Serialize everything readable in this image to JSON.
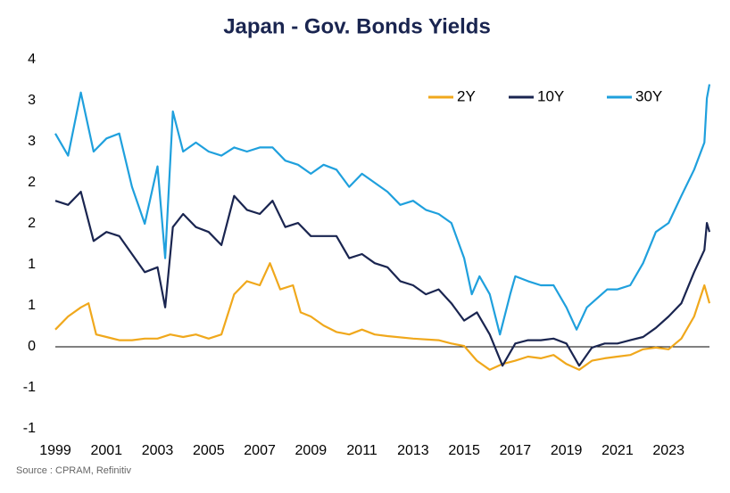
{
  "chart_data": {
    "type": "line",
    "title": "Japan - Gov. Bonds Yields",
    "source": "Source : CPRAM, Refinitiv",
    "xlim": [
      1999,
      2024.6
    ],
    "xticks": [
      1999,
      2001,
      2003,
      2005,
      2007,
      2009,
      2011,
      2013,
      2015,
      2017,
      2019,
      2021,
      2023
    ],
    "ylim": [
      -1,
      3.5
    ],
    "yticks": [
      -1,
      {
        "value": -0.5,
        "label": "-1"
      },
      0,
      {
        "value": 0.5,
        "label": "1"
      },
      1,
      {
        "value": 1.5,
        "label": "2"
      },
      2,
      {
        "value": 2.5,
        "label": "3"
      },
      3,
      {
        "value": 3.5,
        "label": "4"
      }
    ],
    "grid": false,
    "legend": "top-right",
    "series": [
      {
        "name": "2Y",
        "color": "#f0a81c",
        "x": [
          1999.0,
          1999.5,
          2000.0,
          2000.3,
          2000.6,
          2001.0,
          2001.5,
          2002.0,
          2002.5,
          2003.0,
          2003.5,
          2004.0,
          2004.5,
          2005.0,
          2005.5,
          2006.0,
          2006.5,
          2007.0,
          2007.4,
          2007.8,
          2008.3,
          2008.6,
          2009.0,
          2009.5,
          2010.0,
          2010.5,
          2011.0,
          2011.5,
          2012.0,
          2013.0,
          2014.0,
          2014.5,
          2015.0,
          2015.5,
          2016.0,
          2016.5,
          2017.0,
          2017.5,
          2018.0,
          2018.5,
          2019.0,
          2019.5,
          2020.0,
          2020.5,
          2021.0,
          2021.5,
          2022.0,
          2022.5,
          2023.0,
          2023.5,
          2024.0,
          2024.4,
          2024.6
        ],
        "values": [
          0.21,
          0.37,
          0.48,
          0.53,
          0.15,
          0.12,
          0.08,
          0.08,
          0.1,
          0.1,
          0.15,
          0.12,
          0.15,
          0.1,
          0.15,
          0.64,
          0.8,
          0.75,
          1.02,
          0.7,
          0.75,
          0.42,
          0.37,
          0.26,
          0.18,
          0.15,
          0.21,
          0.15,
          0.13,
          0.1,
          0.08,
          0.04,
          0.01,
          -0.17,
          -0.28,
          -0.21,
          -0.17,
          -0.12,
          -0.14,
          -0.1,
          -0.21,
          -0.28,
          -0.17,
          -0.14,
          -0.12,
          -0.1,
          -0.03,
          -0.01,
          -0.03,
          0.1,
          0.37,
          0.75,
          0.53
        ]
      },
      {
        "name": "10Y",
        "color": "#1a2550",
        "x": [
          1999.0,
          1999.5,
          2000.0,
          2000.5,
          2001.0,
          2001.5,
          2002.0,
          2002.5,
          2003.0,
          2003.3,
          2003.6,
          2004.0,
          2004.5,
          2005.0,
          2005.5,
          2006.0,
          2006.5,
          2007.0,
          2007.5,
          2008.0,
          2008.5,
          2009.0,
          2009.5,
          2010.0,
          2010.5,
          2011.0,
          2011.5,
          2012.0,
          2012.5,
          2013.0,
          2013.5,
          2014.0,
          2014.5,
          2015.0,
          2015.5,
          2016.0,
          2016.5,
          2017.0,
          2017.5,
          2018.0,
          2018.5,
          2019.0,
          2019.5,
          2020.0,
          2020.5,
          2021.0,
          2021.5,
          2022.0,
          2022.5,
          2023.0,
          2023.5,
          2024.0,
          2024.4,
          2024.5,
          2024.6
        ],
        "values": [
          1.78,
          1.73,
          1.89,
          1.29,
          1.4,
          1.35,
          1.13,
          0.91,
          0.97,
          0.48,
          1.46,
          1.62,
          1.46,
          1.4,
          1.24,
          1.84,
          1.67,
          1.62,
          1.78,
          1.46,
          1.51,
          1.35,
          1.35,
          1.35,
          1.08,
          1.13,
          1.02,
          0.97,
          0.8,
          0.75,
          0.64,
          0.7,
          0.53,
          0.32,
          0.42,
          0.15,
          -0.23,
          0.04,
          0.08,
          0.08,
          0.1,
          0.04,
          -0.23,
          -0.01,
          0.04,
          0.04,
          0.08,
          0.12,
          0.23,
          0.37,
          0.53,
          0.91,
          1.18,
          1.51,
          1.4
        ]
      },
      {
        "name": "30Y",
        "color": "#1fa0dd",
        "x": [
          1999.0,
          1999.5,
          2000.0,
          2000.5,
          2001.0,
          2001.5,
          2002.0,
          2002.5,
          2003.0,
          2003.3,
          2003.6,
          2004.0,
          2004.5,
          2005.0,
          2005.5,
          2006.0,
          2006.5,
          2007.0,
          2007.5,
          2008.0,
          2008.5,
          2009.0,
          2009.5,
          2010.0,
          2010.5,
          2011.0,
          2011.5,
          2012.0,
          2012.5,
          2013.0,
          2013.5,
          2014.0,
          2014.5,
          2015.0,
          2015.3,
          2015.6,
          2016.0,
          2016.4,
          2016.8,
          2017.0,
          2017.5,
          2018.0,
          2018.5,
          2019.0,
          2019.4,
          2019.8,
          2020.2,
          2020.6,
          2021.0,
          2021.5,
          2022.0,
          2022.5,
          2023.0,
          2023.5,
          2024.0,
          2024.4,
          2024.5,
          2024.6
        ],
        "values": [
          2.6,
          2.33,
          3.1,
          2.38,
          2.54,
          2.6,
          1.95,
          1.5,
          2.2,
          1.08,
          2.87,
          2.38,
          2.49,
          2.38,
          2.33,
          2.43,
          2.38,
          2.43,
          2.43,
          2.27,
          2.22,
          2.11,
          2.22,
          2.16,
          1.95,
          2.11,
          2.0,
          1.89,
          1.73,
          1.78,
          1.67,
          1.62,
          1.51,
          1.08,
          0.64,
          0.86,
          0.64,
          0.15,
          0.64,
          0.86,
          0.8,
          0.75,
          0.75,
          0.48,
          0.21,
          0.48,
          0.59,
          0.7,
          0.7,
          0.75,
          1.02,
          1.4,
          1.51,
          1.84,
          2.16,
          2.49,
          3.03,
          3.2
        ]
      }
    ]
  }
}
